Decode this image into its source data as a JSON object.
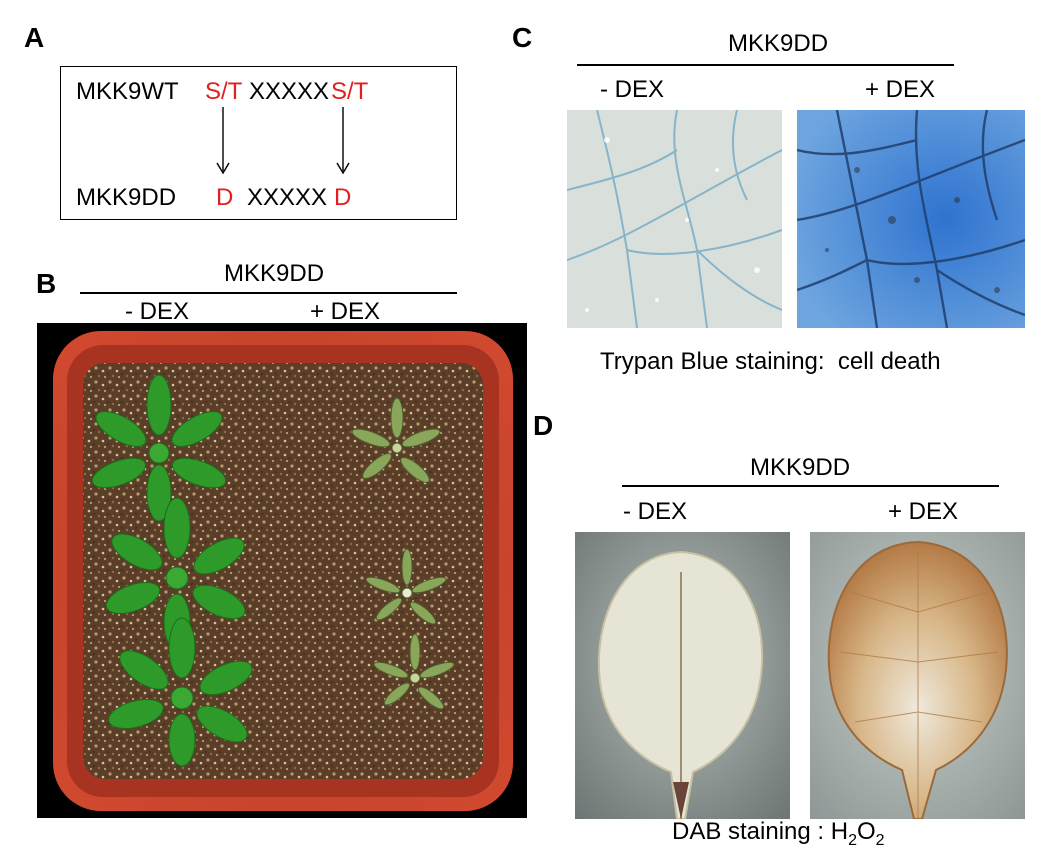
{
  "panels": {
    "A": {
      "letter": "A",
      "wt_label": "MKK9WT",
      "wt_site1": "S/T",
      "wt_spacer": "XXXXX",
      "wt_site2": "S/T",
      "dd_label": "MKK9DD",
      "dd_site1": "D",
      "dd_spacer": "XXXXX",
      "dd_site2": "D"
    },
    "B": {
      "letter": "B",
      "header": "MKK9DD",
      "minus": "- DEX",
      "plus": "+ DEX"
    },
    "C": {
      "letter": "C",
      "header": "MKK9DD",
      "minus": "- DEX",
      "plus": "+ DEX",
      "caption": "Trypan Blue staining:  cell death"
    },
    "D": {
      "letter": "D",
      "header": "MKK9DD",
      "minus": "- DEX",
      "plus": "+ DEX",
      "caption_prefix": "DAB staining : H",
      "caption_sub1": "2",
      "caption_mid": "O",
      "caption_sub2": "2"
    }
  },
  "colors": {
    "site_red": "#e31e1e",
    "pot_red": "#c8412a",
    "soil": "#5a3e28",
    "healthy_leaf": "#2e9a2a",
    "trypan_blue": "#3f83d1",
    "dab_brown": "#b47a45"
  }
}
